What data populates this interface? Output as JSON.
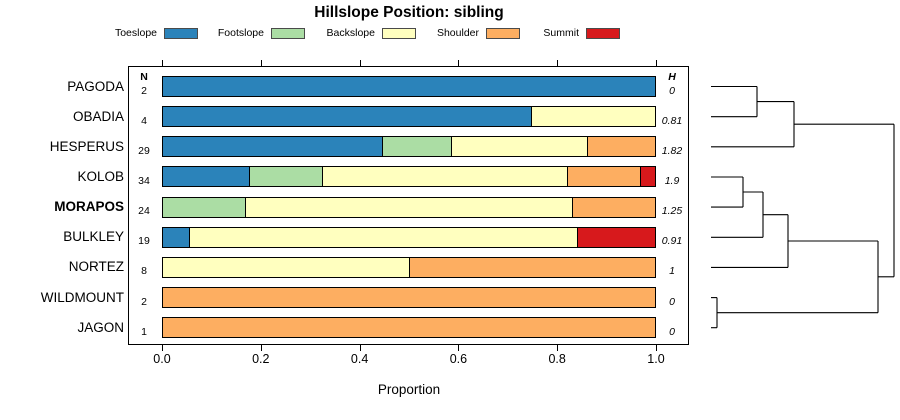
{
  "chart_data": {
    "type": "bar",
    "orientation": "horizontal_stacked",
    "title": "Hillslope Position: sibling",
    "xlabel": "Proportion",
    "xlim": [
      0,
      1
    ],
    "xtick_values": [
      0.0,
      0.2,
      0.4,
      0.6,
      0.8,
      1.0
    ],
    "xtick_labels": [
      "0.0",
      "0.2",
      "0.4",
      "0.6",
      "0.8",
      "1.0"
    ],
    "grid": false,
    "legend_position": "top",
    "legend": [
      {
        "label": "Toeslope",
        "color": "#2B83BA"
      },
      {
        "label": "Footslope",
        "color": "#ABDDA4"
      },
      {
        "label": "Backslope",
        "color": "#FFFFBF"
      },
      {
        "label": "Shoulder",
        "color": "#FDAE61"
      },
      {
        "label": "Summit",
        "color": "#D7191C"
      }
    ],
    "columns": {
      "n_header": "N",
      "h_header": "H"
    },
    "rows": [
      {
        "label": "PAGODA",
        "n": "2",
        "h": "0",
        "bold": false,
        "segments": [
          {
            "category": "Toeslope",
            "proportion": 1.0
          }
        ]
      },
      {
        "label": "OBADIA",
        "n": "4",
        "h": "0.81",
        "bold": false,
        "segments": [
          {
            "category": "Toeslope",
            "proportion": 0.75
          },
          {
            "category": "Backslope",
            "proportion": 0.25
          }
        ]
      },
      {
        "label": "HESPERUS",
        "n": "29",
        "h": "1.82",
        "bold": false,
        "segments": [
          {
            "category": "Toeslope",
            "proportion": 0.4483
          },
          {
            "category": "Footslope",
            "proportion": 0.1379
          },
          {
            "category": "Backslope",
            "proportion": 0.2759
          },
          {
            "category": "Shoulder",
            "proportion": 0.1379
          }
        ]
      },
      {
        "label": "KOLOB",
        "n": "34",
        "h": "1.9",
        "bold": false,
        "segments": [
          {
            "category": "Toeslope",
            "proportion": 0.1765
          },
          {
            "category": "Footslope",
            "proportion": 0.1471
          },
          {
            "category": "Backslope",
            "proportion": 0.5
          },
          {
            "category": "Shoulder",
            "proportion": 0.1471
          },
          {
            "category": "Summit",
            "proportion": 0.0294
          }
        ]
      },
      {
        "label": "MORAPOS",
        "n": "24",
        "h": "1.25",
        "bold": true,
        "segments": [
          {
            "category": "Footslope",
            "proportion": 0.1667
          },
          {
            "category": "Backslope",
            "proportion": 0.6667
          },
          {
            "category": "Shoulder",
            "proportion": 0.1667
          }
        ]
      },
      {
        "label": "BULKLEY",
        "n": "19",
        "h": "0.91",
        "bold": false,
        "segments": [
          {
            "category": "Toeslope",
            "proportion": 0.0526
          },
          {
            "category": "Backslope",
            "proportion": 0.7895
          },
          {
            "category": "Summit",
            "proportion": 0.1579
          }
        ]
      },
      {
        "label": "NORTEZ",
        "n": "8",
        "h": "1",
        "bold": false,
        "segments": [
          {
            "category": "Backslope",
            "proportion": 0.5
          },
          {
            "category": "Shoulder",
            "proportion": 0.5
          }
        ]
      },
      {
        "label": "WILDMOUNT",
        "n": "2",
        "h": "0",
        "bold": false,
        "segments": [
          {
            "category": "Shoulder",
            "proportion": 1.0
          }
        ]
      },
      {
        "label": "JAGON",
        "n": "1",
        "h": "0",
        "bold": false,
        "segments": [
          {
            "category": "Shoulder",
            "proportion": 1.0
          }
        ]
      }
    ],
    "dendrogram": {
      "side": "right",
      "stroke": "#000000",
      "structure": "(((PAGODA,OBADIA),HESPERUS),((((KOLOB,MORAPOS),BULKLEY),NORTEZ),(WILDMOUNT,JAGON)))",
      "segments": [
        [
          21,
          31.5,
          67,
          31.5
        ],
        [
          21,
          61.7,
          67,
          61.7
        ],
        [
          67,
          31.5,
          67,
          61.7
        ],
        [
          67,
          46.6,
          104,
          46.6
        ],
        [
          21,
          91.8,
          104,
          91.8
        ],
        [
          104,
          46.6,
          104,
          91.8
        ],
        [
          104,
          69.2,
          204,
          69.2
        ],
        [
          21,
          122.0,
          53,
          122.0
        ],
        [
          21,
          152.1,
          53,
          152.1
        ],
        [
          53,
          122.0,
          53,
          152.1
        ],
        [
          53,
          137.0,
          73,
          137.0
        ],
        [
          21,
          182.3,
          73,
          182.3
        ],
        [
          73,
          137.0,
          73,
          182.3
        ],
        [
          73,
          159.7,
          98,
          159.7
        ],
        [
          21,
          212.4,
          98,
          212.4
        ],
        [
          98,
          159.7,
          98,
          212.4
        ],
        [
          98,
          186.0,
          188,
          186.0
        ],
        [
          21,
          242.6,
          27,
          242.6
        ],
        [
          21,
          272.7,
          27,
          272.7
        ],
        [
          27,
          242.6,
          27,
          272.7
        ],
        [
          27,
          257.7,
          188,
          257.7
        ],
        [
          188,
          186.0,
          188,
          257.7
        ],
        [
          188,
          221.8,
          204,
          221.8
        ],
        [
          204,
          69.2,
          204,
          221.8
        ]
      ]
    }
  }
}
